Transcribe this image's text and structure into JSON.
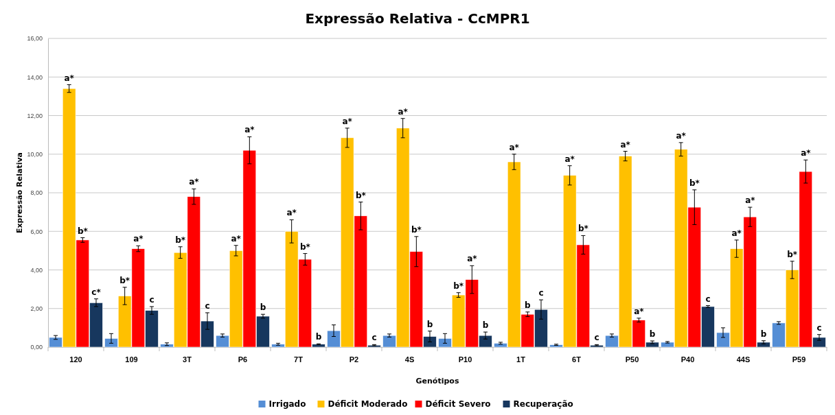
{
  "chart_data": {
    "type": "bar",
    "title": "Expressão Relativa - CcMPR1",
    "xlabel": "Genótipos",
    "ylabel": "Expressão Relativa",
    "categories": [
      "120",
      "109",
      "3T",
      "P6",
      "7T",
      "P2",
      "4S",
      "P10",
      "1T",
      "6T",
      "P50",
      "P40",
      "44S",
      "P59"
    ],
    "series": [
      {
        "name": "Irrigado",
        "color": "#558ed5",
        "values": [
          0.5,
          0.45,
          0.15,
          0.6,
          0.15,
          0.85,
          0.6,
          0.45,
          0.2,
          0.12,
          0.6,
          0.25,
          0.75,
          1.25
        ],
        "errors": [
          0.1,
          0.25,
          0.07,
          0.08,
          0.05,
          0.3,
          0.08,
          0.25,
          0.05,
          0.03,
          0.08,
          0.04,
          0.25,
          0.07
        ]
      },
      {
        "name": "Déficit Moderado",
        "color": "#ffc000",
        "values": [
          13.4,
          2.65,
          4.9,
          5.0,
          6.0,
          10.85,
          11.35,
          2.7,
          9.6,
          8.9,
          9.9,
          10.25,
          5.1,
          4.0
        ],
        "errors": [
          0.2,
          0.45,
          0.3,
          0.27,
          0.6,
          0.5,
          0.5,
          0.12,
          0.4,
          0.5,
          0.25,
          0.35,
          0.45,
          0.45
        ],
        "value_labels": [
          "a*",
          "b*",
          "b*",
          "a*",
          "a*",
          "a*",
          "a*",
          "b*",
          "a*",
          "a*",
          "a*",
          "a*",
          "a*",
          "b*"
        ]
      },
      {
        "name": "Déficit Severo",
        "color": "#ff0000",
        "values": [
          5.55,
          5.1,
          7.8,
          10.2,
          4.55,
          6.8,
          4.95,
          3.5,
          1.7,
          5.3,
          1.4,
          7.25,
          6.75,
          9.1
        ],
        "errors": [
          0.12,
          0.15,
          0.4,
          0.7,
          0.3,
          0.72,
          0.78,
          0.72,
          0.12,
          0.48,
          0.1,
          0.9,
          0.5,
          0.6
        ],
        "value_labels": [
          "b*",
          "a*",
          "a*",
          "a*",
          "b*",
          "b*",
          "b*",
          "a*",
          "b",
          "b*",
          "a*",
          "b*",
          "a*",
          "a*"
        ]
      },
      {
        "name": "Recuperação",
        "color": "#17375e",
        "values": [
          2.3,
          1.9,
          1.35,
          1.6,
          0.15,
          0.1,
          0.55,
          0.6,
          1.95,
          0.1,
          0.25,
          2.1,
          0.25,
          0.5
        ],
        "errors": [
          0.2,
          0.2,
          0.43,
          0.1,
          0.02,
          0.03,
          0.28,
          0.18,
          0.5,
          0.03,
          0.07,
          0.05,
          0.08,
          0.15
        ],
        "value_labels": [
          "c*",
          "c",
          "c",
          "b",
          "b",
          "c",
          "b",
          "b",
          "c",
          "c",
          "b",
          "c",
          "b",
          "c"
        ]
      }
    ],
    "ylim": [
      0,
      16
    ],
    "yticks": [
      {
        "value": 0,
        "label": "0,00"
      },
      {
        "value": 2,
        "label": "2,00"
      },
      {
        "value": 4,
        "label": "4,00"
      },
      {
        "value": 6,
        "label": "6,00"
      },
      {
        "value": 8,
        "label": "8,00"
      },
      {
        "value": 10,
        "label": "10,00"
      },
      {
        "value": 12,
        "label": "12,00"
      },
      {
        "value": 14,
        "label": "14,00"
      },
      {
        "value": 16,
        "label": "16,00"
      }
    ],
    "grid": "y",
    "legend": "bottom"
  }
}
